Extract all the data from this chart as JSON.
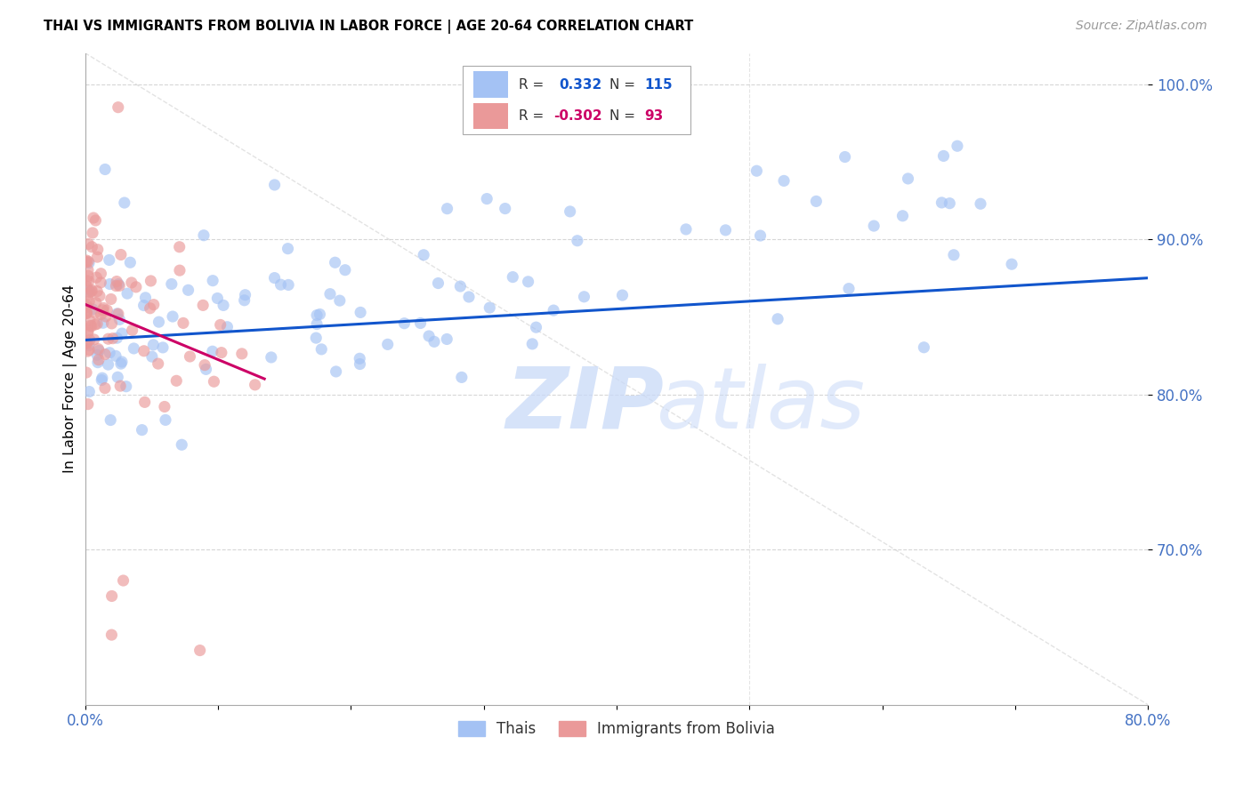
{
  "title": "THAI VS IMMIGRANTS FROM BOLIVIA IN LABOR FORCE | AGE 20-64 CORRELATION CHART",
  "source": "Source: ZipAtlas.com",
  "ylabel": "In Labor Force | Age 20-64",
  "legend_labels": [
    "Thais",
    "Immigrants from Bolivia"
  ],
  "blue_R": 0.332,
  "blue_N": 115,
  "pink_R": -0.302,
  "pink_N": 93,
  "blue_color": "#a4c2f4",
  "pink_color": "#ea9999",
  "blue_line_color": "#1155cc",
  "pink_line_color": "#cc0066",
  "title_color": "#000000",
  "source_color": "#999999",
  "tick_color": "#4472c4",
  "grid_color": "#cccccc",
  "xmin": 0.0,
  "xmax": 0.8,
  "ymin": 0.6,
  "ymax": 1.02,
  "yticks": [
    0.7,
    0.8,
    0.9,
    1.0
  ],
  "ytick_labels": [
    "70.0%",
    "80.0%",
    "90.0%",
    "100.0%"
  ],
  "xticks": [
    0.0,
    0.1,
    0.2,
    0.3,
    0.4,
    0.5,
    0.6,
    0.7,
    0.8
  ],
  "xtick_labels": [
    "0.0%",
    "",
    "",
    "",
    "",
    "",
    "",
    "",
    "80.0%"
  ],
  "figsize": [
    14.06,
    8.92
  ],
  "dpi": 100,
  "blue_trend_x0": 0.0,
  "blue_trend_x1": 0.8,
  "blue_trend_y0": 0.835,
  "blue_trend_y1": 0.875,
  "pink_trend_x0": 0.0,
  "pink_trend_x1": 0.135,
  "pink_trend_y0": 0.858,
  "pink_trend_y1": 0.81
}
